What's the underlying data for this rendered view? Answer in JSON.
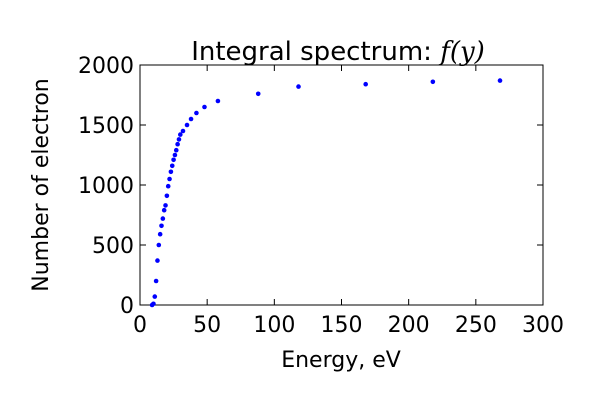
{
  "chart_data": {
    "type": "scatter",
    "title": "Integral spectrum: ",
    "title_math": "f(y)",
    "xlabel": "Energy, eV",
    "ylabel": "Number of electron",
    "xlim": [
      0,
      300
    ],
    "ylim": [
      0,
      2000
    ],
    "xticks": [
      "0",
      "50",
      "100",
      "150",
      "200",
      "250",
      "300"
    ],
    "yticks": [
      "0",
      "500",
      "1000",
      "1500",
      "2000"
    ],
    "grid": false,
    "marker_color": "#0000ff",
    "series": [
      {
        "x": [
          9,
          10,
          11,
          12,
          13,
          14,
          15,
          16,
          17,
          18,
          19,
          20,
          21,
          22,
          23,
          24,
          25,
          26,
          27,
          28,
          29,
          30,
          32,
          35,
          38,
          42,
          48,
          58,
          88,
          118,
          168,
          218,
          268
        ],
        "y": [
          0,
          10,
          70,
          200,
          370,
          500,
          590,
          660,
          720,
          790,
          830,
          910,
          990,
          1050,
          1110,
          1160,
          1210,
          1250,
          1290,
          1340,
          1380,
          1420,
          1450,
          1500,
          1550,
          1600,
          1650,
          1700,
          1760,
          1820,
          1840,
          1860,
          1870
        ]
      }
    ]
  }
}
